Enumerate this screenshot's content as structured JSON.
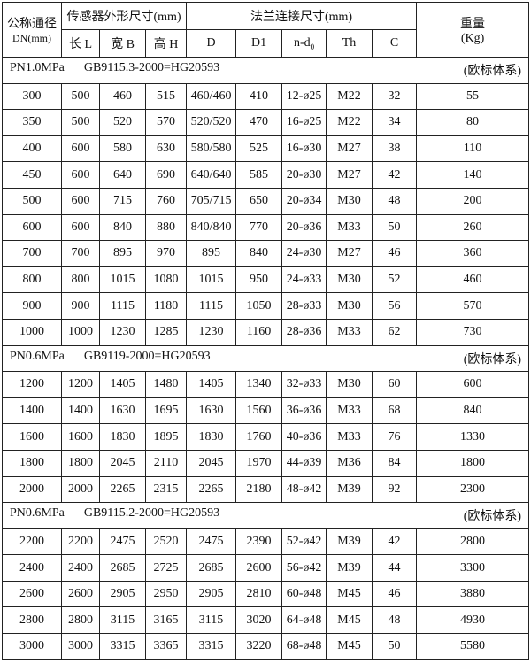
{
  "header": {
    "dn_line1": "公称通径",
    "dn_line2": "DN(mm)",
    "sensor_group": "传感器外形尺寸(mm)",
    "flange_group": "法兰连接尺寸(mm)",
    "weight_line1": "重量",
    "weight_line2": "(Kg)",
    "columns": [
      "长 L",
      "宽 B",
      "高 H",
      "D",
      "D1",
      "n-d",
      "Th",
      "C"
    ],
    "nd_subscript": "0"
  },
  "sections": [
    {
      "pressure": "PN1.0MPa",
      "standard": "GB9115.3-2000=HG20593",
      "system": "(欧标体系)",
      "rows": [
        [
          "300",
          "500",
          "460",
          "515",
          "460/460",
          "410",
          "12-ø25",
          "M22",
          "32",
          "55"
        ],
        [
          "350",
          "500",
          "520",
          "570",
          "520/520",
          "470",
          "16-ø25",
          "M22",
          "34",
          "80"
        ],
        [
          "400",
          "600",
          "580",
          "630",
          "580/580",
          "525",
          "16-ø30",
          "M27",
          "38",
          "110"
        ],
        [
          "450",
          "600",
          "640",
          "690",
          "640/640",
          "585",
          "20-ø30",
          "M27",
          "42",
          "140"
        ],
        [
          "500",
          "600",
          "715",
          "760",
          "705/715",
          "650",
          "20-ø34",
          "M30",
          "48",
          "200"
        ],
        [
          "600",
          "600",
          "840",
          "880",
          "840/840",
          "770",
          "20-ø36",
          "M33",
          "50",
          "260"
        ],
        [
          "700",
          "700",
          "895",
          "970",
          "895",
          "840",
          "24-ø30",
          "M27",
          "46",
          "360"
        ],
        [
          "800",
          "800",
          "1015",
          "1080",
          "1015",
          "950",
          "24-ø33",
          "M30",
          "52",
          "460"
        ],
        [
          "900",
          "900",
          "1115",
          "1180",
          "1115",
          "1050",
          "28-ø33",
          "M30",
          "56",
          "570"
        ],
        [
          "1000",
          "1000",
          "1230",
          "1285",
          "1230",
          "1160",
          "28-ø36",
          "M33",
          "62",
          "730"
        ]
      ]
    },
    {
      "pressure": "PN0.6MPa",
      "standard": "GB9119-2000=HG20593",
      "system": "(欧标体系)",
      "rows": [
        [
          "1200",
          "1200",
          "1405",
          "1480",
          "1405",
          "1340",
          "32-ø33",
          "M30",
          "60",
          "600"
        ],
        [
          "1400",
          "1400",
          "1630",
          "1695",
          "1630",
          "1560",
          "36-ø36",
          "M33",
          "68",
          "840"
        ],
        [
          "1600",
          "1600",
          "1830",
          "1895",
          "1830",
          "1760",
          "40-ø36",
          "M33",
          "76",
          "1330"
        ],
        [
          "1800",
          "1800",
          "2045",
          "2110",
          "2045",
          "1970",
          "44-ø39",
          "M36",
          "84",
          "1800"
        ],
        [
          "2000",
          "2000",
          "2265",
          "2315",
          "2265",
          "2180",
          "48-ø42",
          "M39",
          "92",
          "2300"
        ]
      ]
    },
    {
      "pressure": "PN0.6MPa",
      "standard": "GB9115.2-2000=HG20593",
      "system": "(欧标体系)",
      "rows": [
        [
          "2200",
          "2200",
          "2475",
          "2520",
          "2475",
          "2390",
          "52-ø42",
          "M39",
          "42",
          "2800"
        ],
        [
          "2400",
          "2400",
          "2685",
          "2725",
          "2685",
          "2600",
          "56-ø42",
          "M39",
          "44",
          "3300"
        ],
        [
          "2600",
          "2600",
          "2905",
          "2950",
          "2905",
          "2810",
          "60-ø48",
          "M45",
          "46",
          "3880"
        ],
        [
          "2800",
          "2800",
          "3115",
          "3165",
          "3115",
          "3020",
          "64-ø48",
          "M45",
          "48",
          "4930"
        ],
        [
          "3000",
          "3000",
          "3315",
          "3365",
          "3315",
          "3220",
          "68-ø48",
          "M45",
          "50",
          "5580"
        ]
      ]
    }
  ]
}
